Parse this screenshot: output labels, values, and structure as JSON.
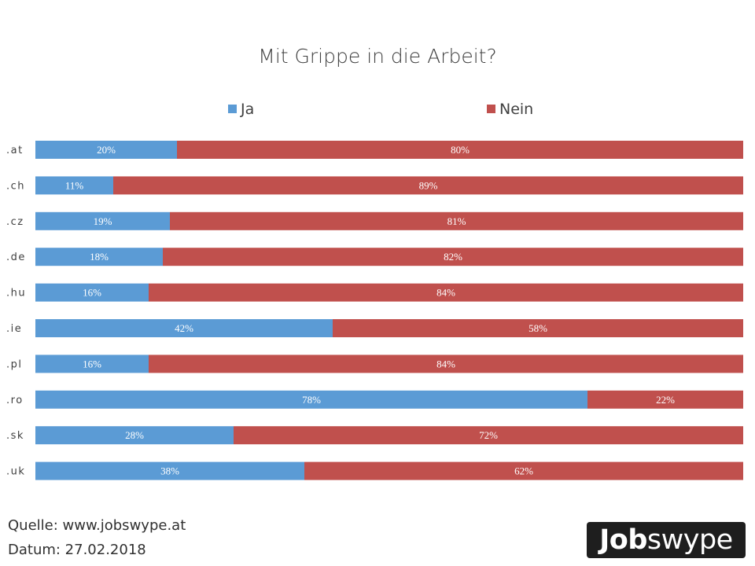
{
  "chart_data": {
    "type": "bar",
    "orientation": "horizontal",
    "stacked": true,
    "percent_stacked": true,
    "title": "Mit Grippe in die Arbeit?",
    "categories": [
      ".at",
      ".ch",
      ".cz",
      ".de",
      ".hu",
      ".ie",
      ".pl",
      ".ro",
      ".sk",
      ".uk"
    ],
    "series": [
      {
        "name": "Ja",
        "color": "#5b9bd5",
        "values": [
          20,
          11,
          19,
          18,
          16,
          42,
          16,
          78,
          28,
          38
        ]
      },
      {
        "name": "Nein",
        "color": "#c0504d",
        "values": [
          80,
          89,
          81,
          82,
          84,
          58,
          84,
          22,
          72,
          62
        ]
      }
    ],
    "value_suffix": "%",
    "xlim": [
      0,
      100
    ],
    "legend_position": "top",
    "grid": false
  },
  "footer": {
    "source": "Quelle: www.jobswype.at",
    "date": "Datum: 27.02.2018"
  },
  "logo": {
    "text": "Jobswype"
  }
}
